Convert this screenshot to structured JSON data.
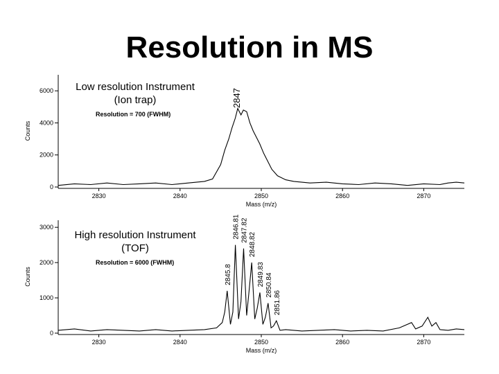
{
  "title": "Resolution in MS",
  "chart_data": [
    {
      "type": "line",
      "caption_line1": "Low resolution Instrument",
      "caption_line2": "(Ion trap)",
      "resolution_label": "Resolution = 700 (FWHM)",
      "xlabel": "Mass (m/z)",
      "ylabel": "Counts",
      "xlim": [
        2825,
        2875
      ],
      "ylim": [
        0,
        7000
      ],
      "xticks": [
        2830,
        2840,
        2850,
        2860,
        2870
      ],
      "yticks": [
        0,
        2000,
        4000,
        6000
      ],
      "peak_labels": [
        {
          "x": 2847,
          "text": "2847"
        }
      ],
      "series": [
        {
          "x": [
            2825,
            2827,
            2829,
            2831,
            2833,
            2835,
            2837,
            2839,
            2841,
            2843,
            2844,
            2845,
            2845.5,
            2846,
            2846.4,
            2846.8,
            2847.1,
            2847.5,
            2847.8,
            2848.2,
            2848.6,
            2849,
            2849.4,
            2849.8,
            2850.3,
            2850.8,
            2851.3,
            2852,
            2853,
            2854,
            2856,
            2858,
            2860,
            2862,
            2864,
            2866,
            2868,
            2870,
            2872,
            2873,
            2874,
            2875
          ],
          "values": [
            100,
            200,
            150,
            250,
            150,
            200,
            250,
            150,
            250,
            350,
            500,
            1400,
            2300,
            3000,
            3700,
            4300,
            4900,
            4500,
            4800,
            4700,
            4000,
            3500,
            3100,
            2700,
            2100,
            1600,
            1100,
            700,
            450,
            350,
            250,
            300,
            200,
            150,
            250,
            200,
            100,
            200,
            150,
            250,
            300,
            250
          ]
        }
      ]
    },
    {
      "type": "line",
      "caption_line1": "High resolution Instrument",
      "caption_line2": "(TOF)",
      "resolution_label": "Resolution = 6000 (FWHM)",
      "xlabel": "Mass (m/z)",
      "ylabel": "Counts",
      "xlim": [
        2825,
        2875
      ],
      "ylim": [
        0,
        3200
      ],
      "xticks": [
        2830,
        2840,
        2850,
        2860,
        2870
      ],
      "yticks": [
        0,
        1000,
        2000,
        3000
      ],
      "peak_labels": [
        {
          "x": 2845.8,
          "text": "2845.8"
        },
        {
          "x": 2846.81,
          "text": "2846.81"
        },
        {
          "x": 2847.82,
          "text": "2847.82"
        },
        {
          "x": 2848.82,
          "text": "2848.82"
        },
        {
          "x": 2849.83,
          "text": "2849.83"
        },
        {
          "x": 2850.84,
          "text": "2850.84"
        },
        {
          "x": 2851.86,
          "text": "2851.86"
        }
      ],
      "series": [
        {
          "x": [
            2825,
            2827,
            2829,
            2831,
            2833,
            2835,
            2837,
            2839,
            2841,
            2843,
            2844.5,
            2845.2,
            2845.5,
            2845.8,
            2846.2,
            2846.5,
            2846.81,
            2847.2,
            2847.5,
            2847.82,
            2848.2,
            2848.5,
            2848.82,
            2849.2,
            2849.5,
            2849.83,
            2850.2,
            2850.5,
            2850.84,
            2851.2,
            2851.5,
            2851.86,
            2852.3,
            2853,
            2855,
            2857,
            2859,
            2861,
            2863,
            2865,
            2867,
            2868.5,
            2869,
            2869.8,
            2870.5,
            2871,
            2871.5,
            2872,
            2873,
            2874,
            2875
          ],
          "values": [
            80,
            120,
            60,
            100,
            80,
            60,
            100,
            60,
            80,
            100,
            150,
            300,
            600,
            1200,
            250,
            600,
            2500,
            400,
            900,
            2400,
            500,
            1200,
            2000,
            400,
            700,
            1150,
            250,
            450,
            850,
            150,
            200,
            350,
            80,
            100,
            60,
            80,
            100,
            60,
            80,
            60,
            150,
            300,
            120,
            200,
            450,
            200,
            300,
            100,
            80,
            120,
            100
          ]
        }
      ]
    }
  ]
}
